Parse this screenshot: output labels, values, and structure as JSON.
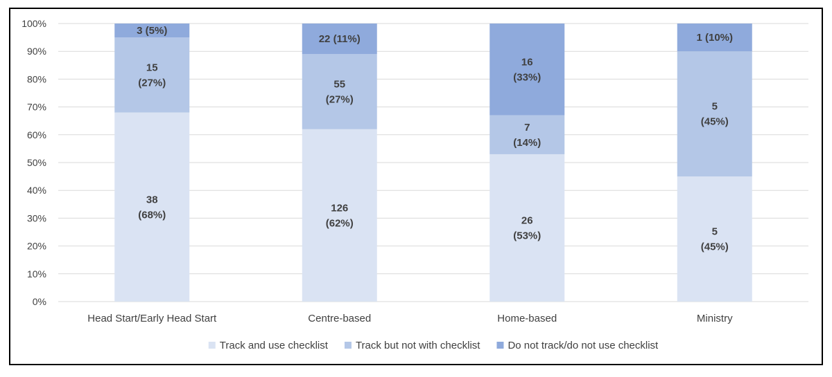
{
  "chart_data": {
    "type": "bar",
    "stacked": true,
    "percent_stacked": true,
    "categories": [
      "Head Start/Early Head Start",
      "Centre-based",
      "Home-based",
      "Ministry"
    ],
    "series": [
      {
        "name": "Track and use checklist",
        "color": "#dae3f3",
        "values": [
          68,
          62,
          53,
          45
        ],
        "labels": [
          [
            "38",
            "(68%)"
          ],
          [
            "126",
            "(62%)"
          ],
          [
            "26",
            "(53%)"
          ],
          [
            "5",
            "(45%)"
          ]
        ]
      },
      {
        "name": "Track but not with checklist",
        "color": "#b4c7e7",
        "values": [
          27,
          27,
          14,
          45
        ],
        "labels": [
          [
            "15",
            "(27%)"
          ],
          [
            "55",
            "(27%)"
          ],
          [
            "7",
            "(14%)"
          ],
          [
            "5",
            "(45%)"
          ]
        ]
      },
      {
        "name": "Do not track/do not use checklist",
        "color": "#8faadc",
        "values": [
          5,
          11,
          33,
          10
        ],
        "labels": [
          [
            "3 (5%)"
          ],
          [
            "22 (11%)"
          ],
          [
            "16",
            "(33%)"
          ],
          [
            "1 (10%)"
          ]
        ]
      }
    ],
    "y_ticks": [
      "0%",
      "10%",
      "20%",
      "30%",
      "40%",
      "50%",
      "60%",
      "70%",
      "80%",
      "90%",
      "100%"
    ],
    "ylim": [
      0,
      100
    ],
    "grid": true,
    "legend_position": "bottom",
    "gridline_color": "#d9d9d9",
    "border_color": "#000000"
  }
}
